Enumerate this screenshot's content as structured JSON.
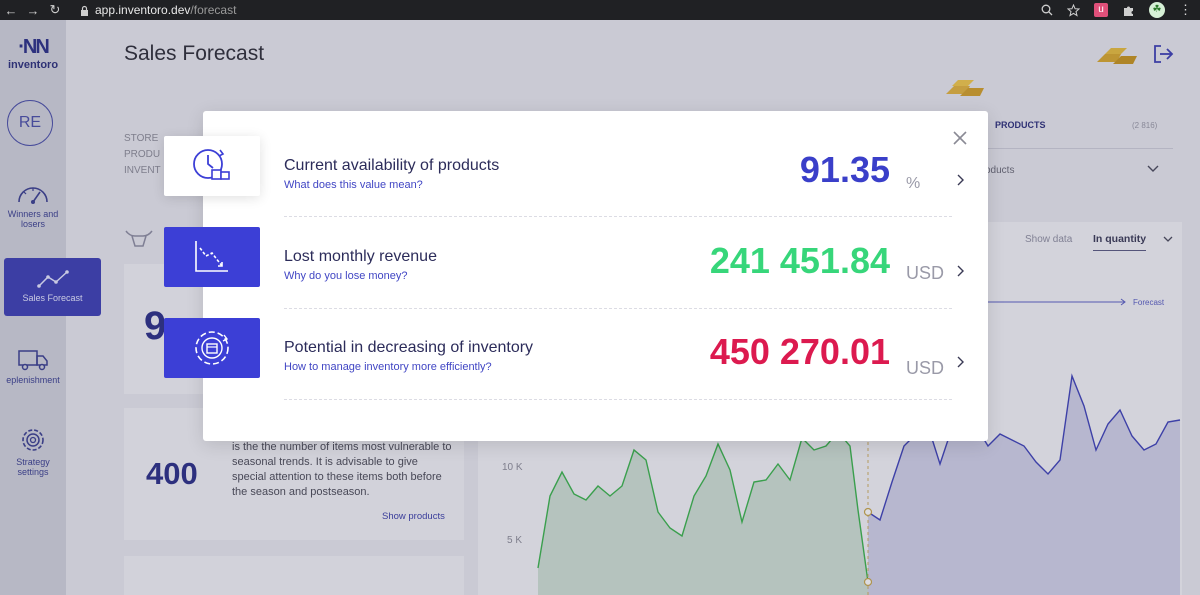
{
  "browser": {
    "url_host": "app.inventoro.dev",
    "url_path": "/forecast",
    "ext_label": "u"
  },
  "app": {
    "logo_name": "inventoro",
    "title": "Sales Forecast",
    "avatar_initials": "RE"
  },
  "sidebar": {
    "items": [
      {
        "label": "Winners and losers",
        "icon": "speedometer-icon",
        "active": false
      },
      {
        "label": "Sales Forecast",
        "icon": "trend-line-icon",
        "active": true
      },
      {
        "label": "eplenishment",
        "icon": "truck-icon",
        "active": false
      },
      {
        "label": "Strategy settings",
        "icon": "gear-icon",
        "active": false
      }
    ]
  },
  "background": {
    "filter_labels": [
      "STORE",
      "PRODU",
      "INVENT"
    ],
    "products_label": "PRODUCTS",
    "products_count": "(2 816)",
    "products_dropdown": "oducts",
    "show_data_label": "Show data",
    "show_data_value": "In quantity",
    "forecast_label": "Forecast",
    "card_value": "400",
    "card_text": "is the the number of items most vulnerable to seasonal trends. It is advisable to give special attention to these items both before the season and postseason.",
    "card_link": "Show products",
    "partial_number": "9",
    "y_labels": [
      "10 K",
      "5 K"
    ]
  },
  "modal": {
    "rows": [
      {
        "title": "Current availability of products",
        "subtitle": "What does this value mean?",
        "value": "91.35",
        "unit": "%",
        "color": "#3a3fc9",
        "icon": "clock-boxes-icon"
      },
      {
        "title": "Lost monthly revenue",
        "subtitle": "Why do you lose money?",
        "value": "241 451.84",
        "unit": "USD",
        "color": "#37d67a",
        "icon": "declining-chart-icon"
      },
      {
        "title": "Potential in decreasing of inventory",
        "subtitle": "How to manage inventory more efficiently?",
        "value": "450 270.01",
        "unit": "USD",
        "color": "#dc1a4f",
        "icon": "inventory-cycle-icon"
      }
    ]
  },
  "colors": {
    "accent": "#3c3fd6",
    "positive": "#37d67a",
    "negative": "#dc1a4f",
    "history_line": "#3ab54a",
    "forecast_line": "#3d41b8"
  }
}
